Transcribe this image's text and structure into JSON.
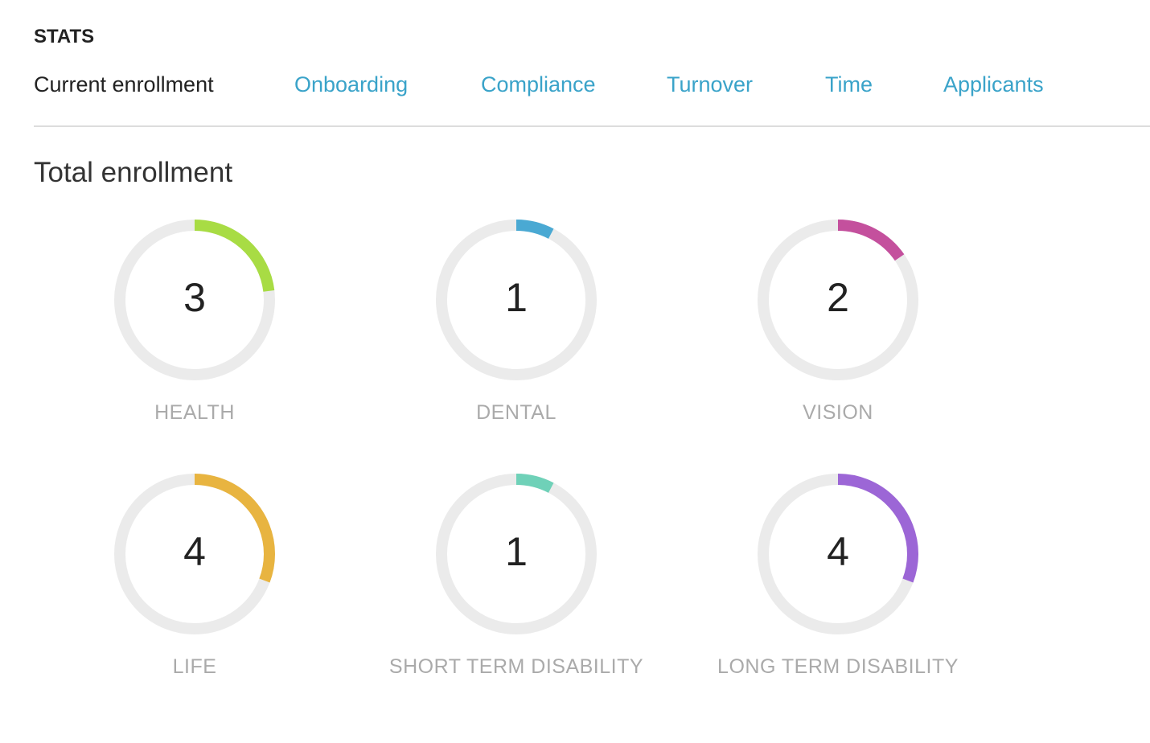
{
  "section_title": "STATS",
  "tabs": [
    {
      "label": "Current enrollment",
      "active": true
    },
    {
      "label": "Onboarding"
    },
    {
      "label": "Compliance"
    },
    {
      "label": "Turnover"
    },
    {
      "label": "Time"
    },
    {
      "label": "Applicants"
    }
  ],
  "heading": "Total enrollment",
  "gauge_max": 13,
  "track_color": "#ebebeb",
  "gauges": [
    {
      "label": "HEALTH",
      "value": 3,
      "color": "#a8dc44"
    },
    {
      "label": "DENTAL",
      "value": 1,
      "color": "#4aa9d3"
    },
    {
      "label": "VISION",
      "value": 2,
      "color": "#c4509d"
    },
    {
      "label": "LIFE",
      "value": 4,
      "color": "#e8b440"
    },
    {
      "label": "SHORT TERM DISABILITY",
      "value": 1,
      "color": "#6fd1b8"
    },
    {
      "label": "LONG TERM DISABILITY",
      "value": 4,
      "color": "#9c66d6"
    }
  ]
}
